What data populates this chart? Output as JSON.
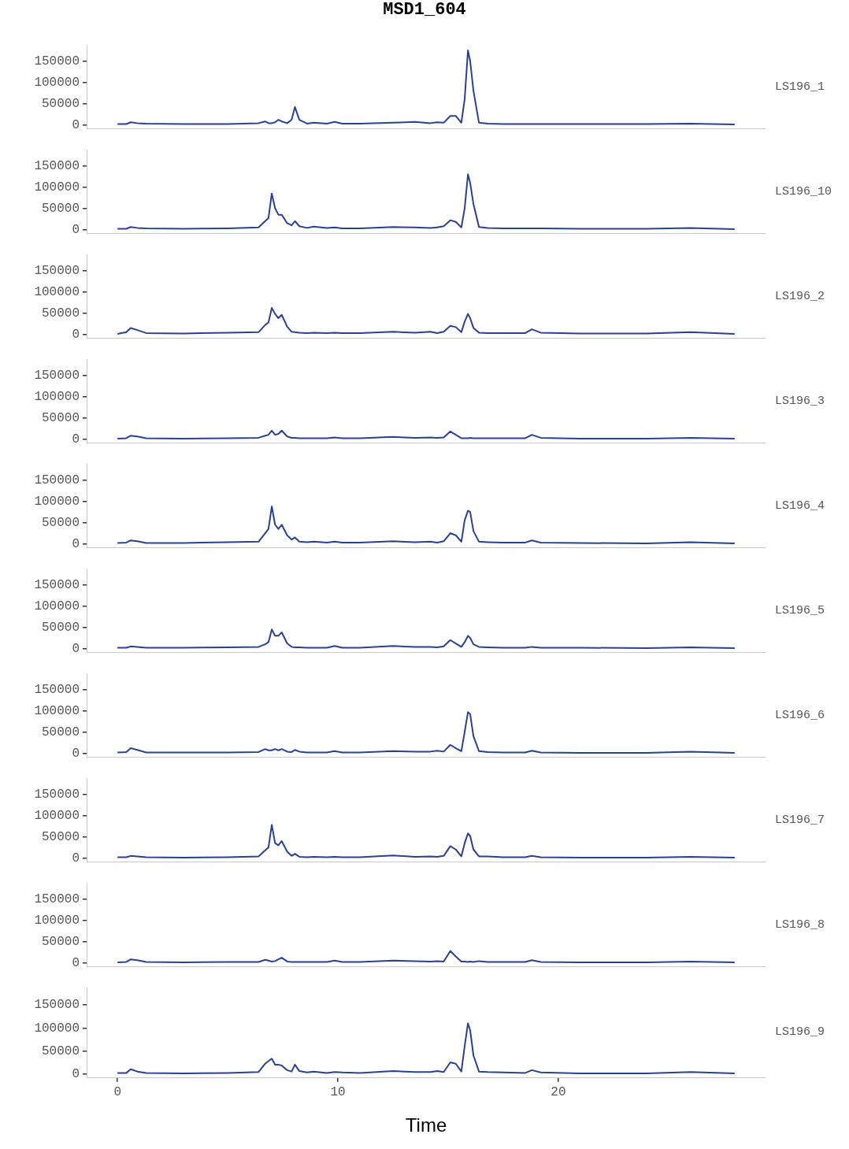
{
  "chart_data": [
    {
      "type": "line",
      "title": "MSD1_604",
      "x": [
        0,
        0.4,
        0.6,
        0.9,
        1.3,
        3,
        5,
        6.4,
        6.7,
        6.85,
        7.0,
        7.15,
        7.3,
        7.45,
        7.7,
        7.9,
        8.05,
        8.25,
        8.6,
        8.9,
        9.5,
        9.85,
        10.2,
        11,
        12.5,
        13.5,
        14.2,
        14.5,
        14.8,
        15.1,
        15.35,
        15.6,
        15.75,
        15.9,
        16.0,
        16.15,
        16.4,
        16.8,
        17.5,
        18.5,
        18.8,
        19.2,
        21,
        24,
        26,
        28
      ],
      "xlim": [
        -1.4,
        29.4
      ],
      "ylim": [
        -9000,
        187000
      ],
      "yticks": [
        0,
        50000,
        100000,
        150000
      ],
      "tick_labels": "y",
      "grid": false,
      "legend": false,
      "marker": "none",
      "series": [
        {
          "name": "LS196_1",
          "color": "#2a4190",
          "values": [
            2000,
            2000,
            6000,
            4000,
            3000,
            2000,
            2000,
            4000,
            8000,
            4000,
            4000,
            6000,
            12000,
            8000,
            4000,
            12000,
            42000,
            12000,
            3000,
            5000,
            3000,
            7000,
            3000,
            3000,
            5000,
            7000,
            4000,
            6000,
            5000,
            21000,
            21000,
            5000,
            60000,
            175000,
            150000,
            80000,
            5000,
            3000,
            2000,
            2000,
            2000,
            2000,
            2000,
            2000,
            3000,
            1000
          ]
        }
      ]
    },
    {
      "type": "line",
      "x": [
        0,
        0.4,
        0.6,
        0.9,
        1.3,
        3,
        5,
        6.4,
        6.7,
        6.85,
        7.0,
        7.15,
        7.3,
        7.45,
        7.7,
        7.9,
        8.05,
        8.25,
        8.6,
        8.9,
        9.5,
        9.85,
        10.2,
        11,
        12.5,
        13.5,
        14.2,
        14.5,
        14.8,
        15.1,
        15.35,
        15.6,
        15.75,
        15.9,
        16.0,
        16.15,
        16.4,
        16.8,
        17.5,
        18.5,
        18.8,
        19.2,
        21,
        24,
        26,
        28
      ],
      "xlim": [
        -1.4,
        29.4
      ],
      "ylim": [
        -9000,
        187000
      ],
      "yticks": [
        0,
        50000,
        100000,
        150000
      ],
      "tick_labels": "y",
      "grid": false,
      "legend": false,
      "marker": "none",
      "series": [
        {
          "name": "LS196_10",
          "color": "#2a4190",
          "values": [
            2000,
            2000,
            6000,
            4000,
            3000,
            2000,
            3000,
            5000,
            20000,
            27000,
            85000,
            50000,
            35000,
            35000,
            15000,
            10000,
            20000,
            8000,
            4000,
            7000,
            4000,
            5000,
            3000,
            3000,
            6000,
            5000,
            4000,
            5000,
            8000,
            22000,
            18000,
            5000,
            50000,
            130000,
            110000,
            60000,
            6000,
            4000,
            3000,
            3000,
            3000,
            3000,
            2000,
            2000,
            4000,
            1000
          ]
        }
      ]
    },
    {
      "type": "line",
      "x": [
        0,
        0.4,
        0.6,
        0.9,
        1.3,
        3,
        5,
        6.4,
        6.7,
        6.85,
        7.0,
        7.15,
        7.3,
        7.45,
        7.7,
        7.9,
        8.05,
        8.25,
        8.6,
        8.9,
        9.5,
        9.85,
        10.2,
        11,
        12.5,
        13.5,
        14.2,
        14.5,
        14.8,
        15.1,
        15.35,
        15.6,
        15.75,
        15.9,
        16.0,
        16.15,
        16.4,
        16.8,
        17.5,
        18.5,
        18.8,
        19.2,
        21,
        24,
        26,
        28
      ],
      "xlim": [
        -1.4,
        29.4
      ],
      "ylim": [
        -9000,
        187000
      ],
      "yticks": [
        0,
        50000,
        100000,
        150000
      ],
      "tick_labels": "y",
      "grid": false,
      "legend": false,
      "marker": "none",
      "series": [
        {
          "name": "LS196_2",
          "color": "#2a4190",
          "values": [
            1000,
            5000,
            15000,
            10000,
            3000,
            2000,
            4000,
            5000,
            22000,
            28000,
            62000,
            48000,
            38000,
            46000,
            18000,
            6000,
            5000,
            4000,
            3000,
            4000,
            3000,
            4000,
            3000,
            3000,
            6000,
            4000,
            6000,
            3000,
            6000,
            20000,
            17000,
            5000,
            30000,
            48000,
            38000,
            15000,
            4000,
            3000,
            3000,
            3000,
            12000,
            4000,
            2000,
            2000,
            5000,
            1000
          ]
        }
      ]
    },
    {
      "type": "line",
      "x": [
        0,
        0.4,
        0.6,
        0.9,
        1.3,
        3,
        5,
        6.4,
        6.7,
        6.85,
        7.0,
        7.15,
        7.3,
        7.45,
        7.7,
        7.9,
        8.05,
        8.25,
        8.6,
        8.9,
        9.5,
        9.85,
        10.2,
        11,
        12.5,
        13.5,
        14.2,
        14.5,
        14.8,
        15.1,
        15.35,
        15.6,
        15.75,
        15.9,
        16.0,
        16.15,
        16.4,
        16.8,
        17.5,
        18.5,
        18.8,
        19.2,
        21,
        24,
        26,
        28
      ],
      "xlim": [
        -1.4,
        29.4
      ],
      "ylim": [
        -9000,
        187000
      ],
      "yticks": [
        0,
        50000,
        100000,
        150000
      ],
      "tick_labels": "y",
      "grid": false,
      "legend": false,
      "marker": "none",
      "series": [
        {
          "name": "LS196_3",
          "color": "#2a4190",
          "values": [
            1000,
            2000,
            8000,
            6000,
            2000,
            1000,
            2000,
            3000,
            8000,
            10000,
            20000,
            10000,
            12000,
            20000,
            6000,
            3000,
            3000,
            2000,
            2000,
            2000,
            2000,
            4000,
            2000,
            2000,
            5000,
            3000,
            4000,
            3000,
            4000,
            18000,
            10000,
            2000,
            2000,
            2000,
            3000,
            2000,
            2000,
            2000,
            2000,
            2000,
            10000,
            3000,
            1000,
            1000,
            3000,
            1000
          ]
        }
      ]
    },
    {
      "type": "line",
      "x": [
        0,
        0.4,
        0.6,
        0.9,
        1.3,
        3,
        5,
        6.4,
        6.7,
        6.85,
        7.0,
        7.15,
        7.3,
        7.45,
        7.7,
        7.9,
        8.05,
        8.25,
        8.6,
        8.9,
        9.5,
        9.85,
        10.2,
        11,
        12.5,
        13.5,
        14.2,
        14.5,
        14.8,
        15.1,
        15.35,
        15.6,
        15.75,
        15.9,
        16.0,
        16.15,
        16.4,
        16.8,
        17.5,
        18.5,
        18.8,
        19.2,
        21,
        24,
        26,
        28
      ],
      "xlim": [
        -1.4,
        29.4
      ],
      "ylim": [
        -9000,
        187000
      ],
      "yticks": [
        0,
        50000,
        100000,
        150000
      ],
      "tick_labels": "y",
      "grid": false,
      "legend": false,
      "marker": "none",
      "series": [
        {
          "name": "LS196_4",
          "color": "#2a4190",
          "values": [
            2000,
            3000,
            8000,
            6000,
            2000,
            2000,
            4000,
            5000,
            25000,
            35000,
            88000,
            45000,
            35000,
            45000,
            20000,
            10000,
            15000,
            5000,
            4000,
            5000,
            3000,
            5000,
            3000,
            3000,
            6000,
            4000,
            5000,
            3000,
            6000,
            25000,
            20000,
            5000,
            55000,
            78000,
            75000,
            30000,
            5000,
            4000,
            3000,
            3000,
            8000,
            3000,
            2000,
            1000,
            4000,
            1000
          ]
        }
      ]
    },
    {
      "type": "line",
      "x": [
        0,
        0.4,
        0.6,
        0.9,
        1.3,
        3,
        5,
        6.4,
        6.7,
        6.85,
        7.0,
        7.15,
        7.3,
        7.45,
        7.7,
        7.9,
        8.05,
        8.25,
        8.6,
        8.9,
        9.5,
        9.85,
        10.2,
        11,
        12.5,
        13.5,
        14.2,
        14.5,
        14.8,
        15.1,
        15.35,
        15.6,
        15.75,
        15.9,
        16.0,
        16.15,
        16.4,
        16.8,
        17.5,
        18.5,
        18.8,
        19.2,
        21,
        24,
        26,
        28
      ],
      "xlim": [
        -1.4,
        29.4
      ],
      "ylim": [
        -9000,
        187000
      ],
      "yticks": [
        0,
        50000,
        100000,
        150000
      ],
      "tick_labels": "y",
      "grid": false,
      "legend": false,
      "marker": "none",
      "series": [
        {
          "name": "LS196_5",
          "color": "#2a4190",
          "values": [
            2000,
            2000,
            5000,
            4000,
            2000,
            2000,
            3000,
            4000,
            10000,
            15000,
            45000,
            30000,
            30000,
            38000,
            12000,
            4000,
            3000,
            3000,
            2000,
            2000,
            2000,
            6000,
            2000,
            2000,
            6000,
            4000,
            4000,
            3000,
            5000,
            20000,
            12000,
            4000,
            15000,
            30000,
            25000,
            10000,
            4000,
            3000,
            2000,
            2000,
            4000,
            2000,
            2000,
            1000,
            3000,
            1000
          ]
        }
      ]
    },
    {
      "type": "line",
      "x": [
        0,
        0.4,
        0.6,
        0.9,
        1.3,
        3,
        5,
        6.4,
        6.7,
        6.85,
        7.0,
        7.15,
        7.3,
        7.45,
        7.7,
        7.9,
        8.05,
        8.25,
        8.6,
        8.9,
        9.5,
        9.85,
        10.2,
        11,
        12.5,
        13.5,
        14.2,
        14.5,
        14.8,
        15.1,
        15.35,
        15.6,
        15.75,
        15.9,
        16.0,
        16.15,
        16.4,
        16.8,
        17.5,
        18.5,
        18.8,
        19.2,
        21,
        24,
        26,
        28
      ],
      "xlim": [
        -1.4,
        29.4
      ],
      "ylim": [
        -9000,
        187000
      ],
      "yticks": [
        0,
        50000,
        100000,
        150000
      ],
      "tick_labels": "y",
      "grid": false,
      "legend": false,
      "marker": "none",
      "series": [
        {
          "name": "LS196_6",
          "color": "#2a4190",
          "values": [
            2000,
            3000,
            12000,
            8000,
            2000,
            2000,
            2000,
            3000,
            10000,
            7000,
            7000,
            10000,
            7000,
            10000,
            4000,
            3000,
            8000,
            4000,
            2000,
            2000,
            2000,
            5000,
            2000,
            2000,
            5000,
            4000,
            4000,
            6000,
            4000,
            20000,
            12000,
            5000,
            50000,
            97000,
            92000,
            40000,
            5000,
            3000,
            2000,
            2000,
            6000,
            2000,
            1000,
            1000,
            4000,
            1000
          ]
        }
      ]
    },
    {
      "type": "line",
      "x": [
        0,
        0.4,
        0.6,
        0.9,
        1.3,
        3,
        5,
        6.4,
        6.7,
        6.85,
        7.0,
        7.15,
        7.3,
        7.45,
        7.7,
        7.9,
        8.05,
        8.25,
        8.6,
        8.9,
        9.5,
        9.85,
        10.2,
        11,
        12.5,
        13.5,
        14.2,
        14.5,
        14.8,
        15.1,
        15.35,
        15.6,
        15.75,
        15.9,
        16.0,
        16.15,
        16.4,
        16.8,
        17.5,
        18.5,
        18.8,
        19.2,
        21,
        24,
        26,
        28
      ],
      "xlim": [
        -1.4,
        29.4
      ],
      "ylim": [
        -9000,
        187000
      ],
      "yticks": [
        0,
        50000,
        100000,
        150000
      ],
      "tick_labels": "y",
      "grid": false,
      "legend": false,
      "marker": "none",
      "series": [
        {
          "name": "LS196_7",
          "color": "#2a4190",
          "values": [
            2000,
            2000,
            5000,
            4000,
            2000,
            1000,
            2000,
            4000,
            18000,
            25000,
            78000,
            35000,
            30000,
            40000,
            15000,
            5000,
            10000,
            3000,
            2000,
            3000,
            2000,
            3000,
            2000,
            2000,
            6000,
            3000,
            4000,
            3000,
            5000,
            28000,
            20000,
            4000,
            35000,
            58000,
            52000,
            20000,
            4000,
            4000,
            2000,
            2000,
            5000,
            2000,
            1000,
            1000,
            3000,
            1000
          ]
        }
      ]
    },
    {
      "type": "line",
      "x": [
        0,
        0.4,
        0.6,
        0.9,
        1.3,
        3,
        5,
        6.4,
        6.7,
        6.85,
        7.0,
        7.15,
        7.3,
        7.45,
        7.7,
        7.9,
        8.05,
        8.25,
        8.6,
        8.9,
        9.5,
        9.85,
        10.2,
        11,
        12.5,
        13.5,
        14.2,
        14.5,
        14.8,
        15.1,
        15.35,
        15.6,
        15.75,
        15.9,
        16.0,
        16.15,
        16.4,
        16.8,
        17.5,
        18.5,
        18.8,
        19.2,
        21,
        24,
        26,
        28
      ],
      "xlim": [
        -1.4,
        29.4
      ],
      "ylim": [
        -9000,
        187000
      ],
      "yticks": [
        0,
        50000,
        100000,
        150000
      ],
      "tick_labels": "y",
      "grid": false,
      "legend": false,
      "marker": "none",
      "series": [
        {
          "name": "LS196_8",
          "color": "#2a4190",
          "values": [
            1000,
            2000,
            8000,
            6000,
            2000,
            1000,
            2000,
            2000,
            7000,
            5000,
            3000,
            4000,
            8000,
            12000,
            3000,
            2000,
            2000,
            2000,
            2000,
            2000,
            2000,
            5000,
            2000,
            2000,
            5000,
            4000,
            3000,
            4000,
            3000,
            28000,
            15000,
            3000,
            3000,
            2000,
            3000,
            2000,
            4000,
            2000,
            2000,
            2000,
            6000,
            2000,
            1000,
            1000,
            3000,
            1000
          ]
        }
      ]
    },
    {
      "type": "line",
      "xlabel": "Time",
      "x": [
        0,
        0.4,
        0.6,
        0.9,
        1.3,
        3,
        5,
        6.4,
        6.7,
        6.85,
        7.0,
        7.15,
        7.3,
        7.45,
        7.7,
        7.9,
        8.05,
        8.25,
        8.6,
        8.9,
        9.5,
        9.85,
        10.2,
        11,
        12.5,
        13.5,
        14.2,
        14.5,
        14.8,
        15.1,
        15.35,
        15.6,
        15.75,
        15.9,
        16.0,
        16.15,
        16.4,
        16.8,
        17.5,
        18.5,
        18.8,
        19.2,
        21,
        24,
        26,
        28
      ],
      "xlim": [
        -1.4,
        29.4
      ],
      "xticks": [
        0,
        10,
        20
      ],
      "ylim": [
        -9000,
        187000
      ],
      "yticks": [
        0,
        50000,
        100000,
        150000
      ],
      "grid": false,
      "legend": false,
      "marker": "none",
      "series": [
        {
          "name": "LS196_9",
          "color": "#2a4190",
          "values": [
            2000,
            2000,
            10000,
            5000,
            2000,
            1000,
            2000,
            4000,
            22000,
            28000,
            33000,
            20000,
            20000,
            18000,
            8000,
            5000,
            20000,
            6000,
            3000,
            5000,
            2000,
            4000,
            3000,
            2000,
            6000,
            4000,
            4000,
            6000,
            4000,
            25000,
            22000,
            5000,
            60000,
            110000,
            95000,
            40000,
            5000,
            4000,
            3000,
            2000,
            8000,
            3000,
            1000,
            1000,
            4000,
            1000
          ]
        }
      ]
    }
  ]
}
